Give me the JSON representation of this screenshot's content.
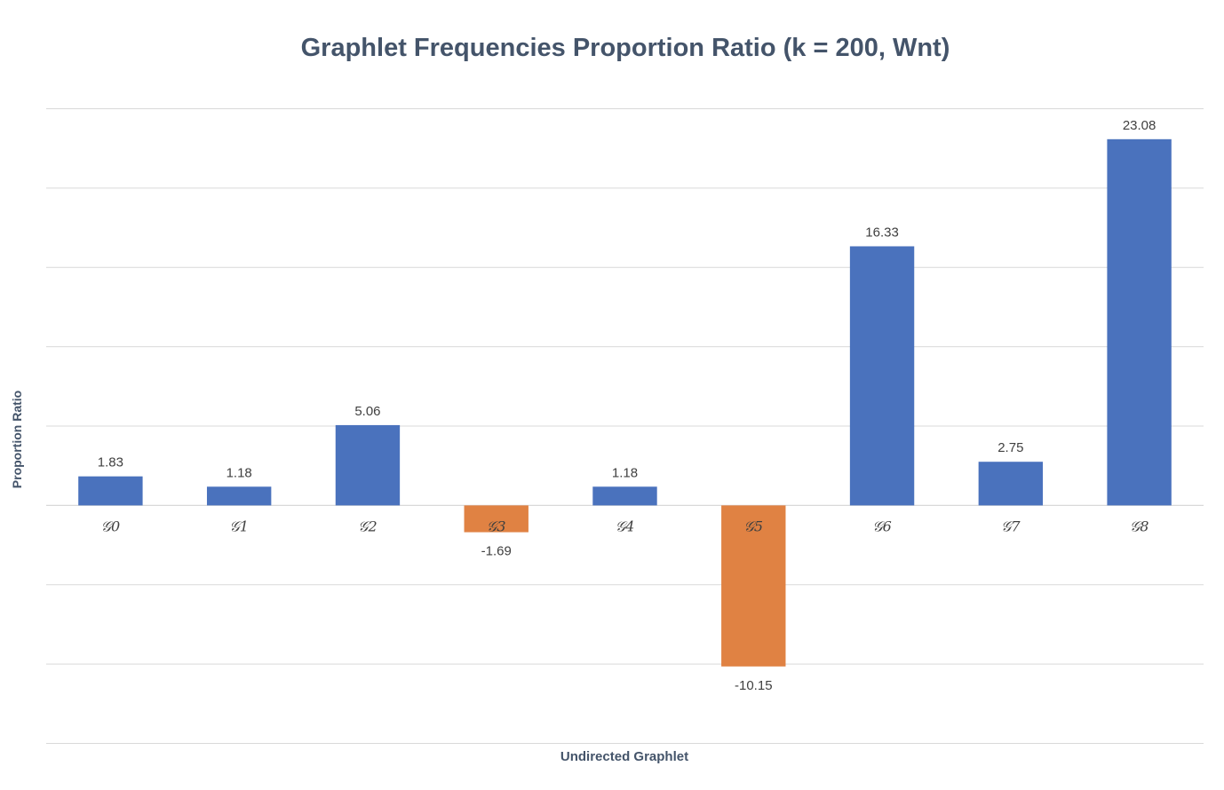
{
  "chart_data": {
    "type": "bar",
    "title": "Graphlet Frequencies Proportion Ratio (k = 200, Wnt)",
    "xlabel": "Undirected Graphlet",
    "ylabel": "Proportion Ratio",
    "categories": [
      "𝒢0",
      "𝒢1",
      "𝒢2",
      "𝒢3",
      "𝒢4",
      "𝒢5",
      "𝒢6",
      "𝒢7",
      "𝒢8"
    ],
    "values": [
      1.83,
      1.18,
      5.06,
      -1.69,
      1.18,
      -10.15,
      16.33,
      2.75,
      23.08
    ],
    "data_labels": [
      "1.83",
      "1.18",
      "5.06",
      "-1.69",
      "1.18",
      "-10.15",
      "16.33",
      "2.75",
      "23.08"
    ],
    "ylim": [
      -15,
      25
    ],
    "grid": true,
    "legend": "none",
    "colors": {
      "positive": "#4a72bd",
      "negative": "#e08243",
      "grid": "#d9d9d9",
      "text": "#404040",
      "title": "#44546a"
    }
  }
}
